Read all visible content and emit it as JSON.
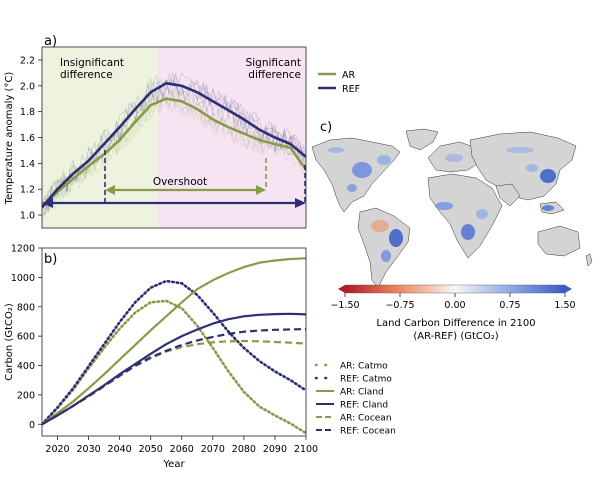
{
  "colors": {
    "ar": "#8a9a4b",
    "ref": "#2b2f73",
    "region_green": "#eef3df",
    "region_pink": "#f6e4f3"
  },
  "chart_data": [
    {
      "panel": "a)",
      "type": "line",
      "ylabel": "Temperature anomaly (°C)",
      "ylim": [
        0.9,
        2.3
      ],
      "xlim": [
        2015,
        2100
      ],
      "yticks": [
        "1.0",
        "1.2",
        "1.4",
        "1.6",
        "1.8",
        "2.0",
        "2.2"
      ],
      "grid": false,
      "legend": "right-outside",
      "annotations": {
        "left_region": [
          "Insignificant",
          "difference"
        ],
        "right_region": [
          "Significant",
          "difference"
        ],
        "overshoot": "Overshoot"
      },
      "x": [
        2015,
        2020,
        2025,
        2030,
        2035,
        2040,
        2045,
        2050,
        2055,
        2060,
        2065,
        2070,
        2075,
        2080,
        2085,
        2090,
        2095,
        2100
      ],
      "series": [
        {
          "name": "AR",
          "values": [
            1.06,
            1.18,
            1.28,
            1.38,
            1.47,
            1.58,
            1.72,
            1.85,
            1.9,
            1.88,
            1.82,
            1.74,
            1.68,
            1.63,
            1.58,
            1.55,
            1.52,
            1.35
          ]
        },
        {
          "name": "REF",
          "values": [
            1.06,
            1.2,
            1.32,
            1.42,
            1.55,
            1.68,
            1.82,
            1.95,
            2.02,
            2.0,
            1.95,
            1.88,
            1.81,
            1.74,
            1.66,
            1.6,
            1.55,
            1.45
          ]
        }
      ]
    },
    {
      "panel": "b)",
      "type": "line",
      "xlabel": "Year",
      "ylabel": "Carbon (GtCO₂)",
      "xlim": [
        2015,
        2100
      ],
      "ylim": [
        -80,
        1200
      ],
      "xticks": [
        "2020",
        "2030",
        "2040",
        "2050",
        "2060",
        "2070",
        "2080",
        "2090",
        "2100"
      ],
      "yticks": [
        "0",
        "200",
        "400",
        "600",
        "800",
        "1000",
        "1200"
      ],
      "legend": "right-outside",
      "x": [
        2015,
        2020,
        2025,
        2030,
        2035,
        2040,
        2045,
        2050,
        2055,
        2060,
        2065,
        2070,
        2075,
        2080,
        2085,
        2090,
        2095,
        2100
      ],
      "series": [
        {
          "name": "AR: Catmo",
          "style": "dotted",
          "color": "ar",
          "values": [
            0,
            110,
            235,
            380,
            520,
            650,
            760,
            830,
            840,
            790,
            670,
            520,
            360,
            220,
            120,
            60,
            5,
            -60
          ]
        },
        {
          "name": "REF: Catmo",
          "style": "dotted",
          "color": "ref",
          "values": [
            0,
            115,
            245,
            395,
            545,
            695,
            830,
            930,
            975,
            960,
            880,
            760,
            630,
            520,
            430,
            360,
            300,
            230
          ]
        },
        {
          "name": "AR: Cland",
          "style": "solid",
          "color": "ar",
          "values": [
            0,
            75,
            155,
            245,
            340,
            440,
            540,
            640,
            735,
            830,
            920,
            980,
            1030,
            1070,
            1100,
            1115,
            1125,
            1130
          ]
        },
        {
          "name": "REF: Cland",
          "style": "solid",
          "color": "ref",
          "values": [
            0,
            60,
            125,
            195,
            265,
            340,
            410,
            480,
            545,
            600,
            645,
            685,
            715,
            735,
            745,
            750,
            752,
            748
          ]
        },
        {
          "name": "AR: Cocean",
          "style": "dashed",
          "color": "ar",
          "values": [
            0,
            60,
            125,
            190,
            260,
            330,
            395,
            450,
            495,
            525,
            545,
            558,
            565,
            567,
            565,
            560,
            555,
            550
          ]
        },
        {
          "name": "REF: Cocean",
          "style": "dashed",
          "color": "ref",
          "values": [
            0,
            60,
            125,
            190,
            260,
            330,
            400,
            455,
            500,
            540,
            570,
            595,
            615,
            630,
            638,
            643,
            646,
            648
          ]
        }
      ]
    },
    {
      "panel": "c)",
      "type": "heatmap",
      "colorbar_label": [
        "Land Carbon Difference in 2100",
        "(AR-REF) (GtCO₂)"
      ],
      "colorbar_ticks": [
        "−1.50",
        "−0.75",
        "0.00",
        "0.75",
        "1.50"
      ],
      "vmin": -1.5,
      "vmax": 1.5
    }
  ]
}
